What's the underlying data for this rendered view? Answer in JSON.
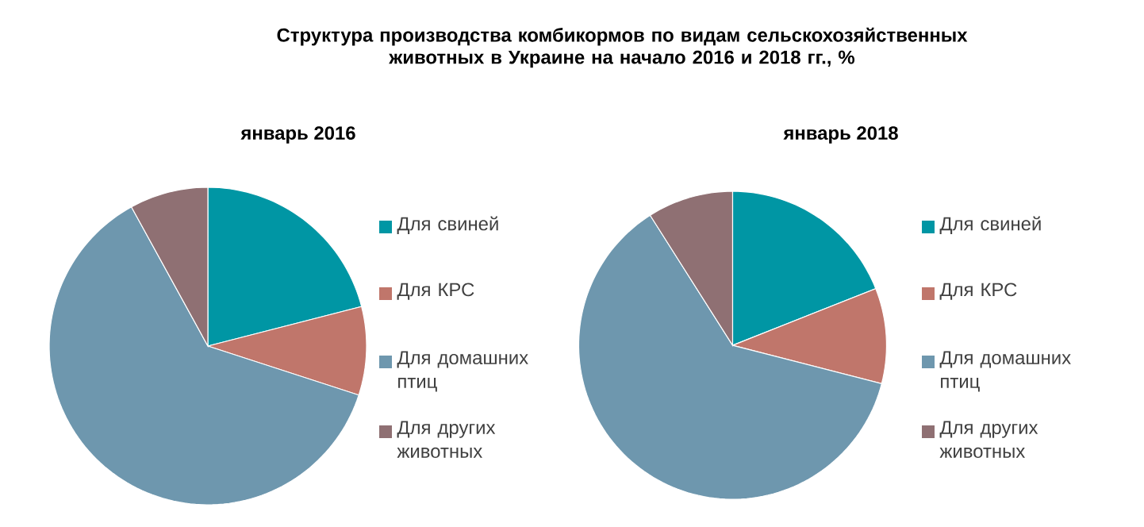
{
  "chart_data": [
    {
      "type": "other",
      "title": "Структура производства комбикормов по видам сельскохозяйственных животных в Украине на начало 2016 и 2018 гг., %"
    },
    {
      "type": "pie",
      "title": "январь 2016",
      "categories": [
        "Для свиней",
        "Для КРС",
        "Для домашних птиц",
        "Для других животных"
      ],
      "values": [
        21,
        9,
        62,
        8
      ],
      "colors": [
        "#0096a4",
        "#c0766b",
        "#6e97ae",
        "#8f7073"
      ],
      "legend": "right"
    },
    {
      "type": "pie",
      "title": "январь 2018",
      "categories": [
        "Для свиней",
        "Для КРС",
        "Для домашних птиц",
        "Для других животных"
      ],
      "values": [
        19,
        10,
        62,
        9
      ],
      "colors": [
        "#0096a4",
        "#c0766b",
        "#6e97ae",
        "#8f7073"
      ],
      "legend": "right"
    }
  ]
}
